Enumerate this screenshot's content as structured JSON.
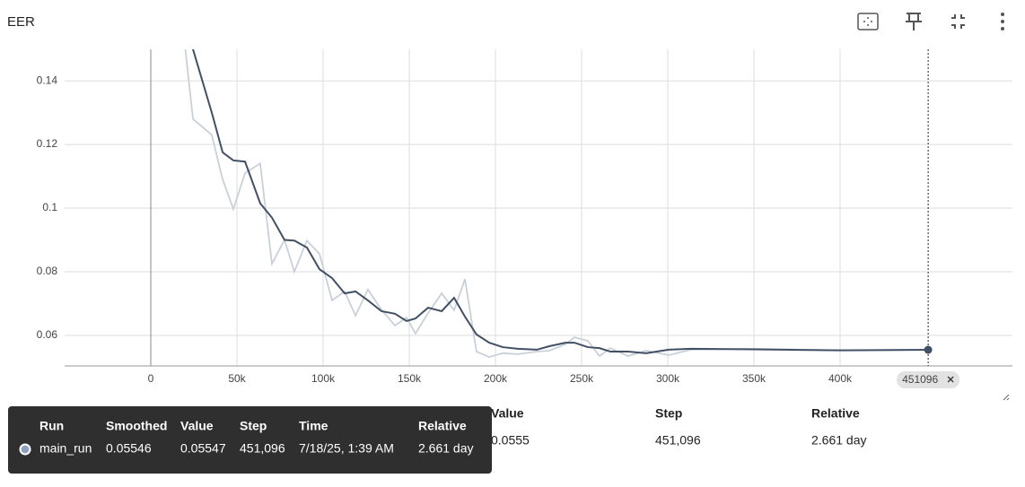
{
  "chart_data": {
    "type": "line",
    "title": "EER",
    "x": [
      18000,
      24500,
      35400,
      41700,
      47900,
      54700,
      63500,
      70300,
      77600,
      83300,
      90600,
      97900,
      105200,
      112500,
      118800,
      126000,
      133900,
      141700,
      148400,
      153600,
      160900,
      168800,
      176000,
      182300,
      189000,
      196400,
      204200,
      213000,
      224000,
      231300,
      240600,
      245800,
      253600,
      260400,
      266700,
      277000,
      287500,
      300500,
      313500,
      350000,
      400000,
      451096
    ],
    "series": [
      {
        "color": "#c9d0da",
        "values": [
          0.16,
          0.128,
          0.123,
          0.109,
          0.0997,
          0.111,
          0.114,
          0.0825,
          0.09,
          0.08,
          0.0898,
          0.0856,
          0.071,
          0.0738,
          0.0662,
          0.0744,
          0.068,
          0.0631,
          0.0656,
          0.0606,
          0.067,
          0.0732,
          0.0679,
          0.0777,
          0.0549,
          0.0532,
          0.0544,
          0.0541,
          0.0549,
          0.0552,
          0.0572,
          0.0594,
          0.0583,
          0.0535,
          0.056,
          0.0535,
          0.0552,
          0.0538,
          0.0555,
          0.0558,
          0.0553,
          0.05547
        ]
      },
      {
        "name": "main_run",
        "color": "#425066",
        "values": [
          0.17,
          0.1499,
          0.13,
          0.1175,
          0.115,
          0.1146,
          0.1015,
          0.097,
          0.09,
          0.0898,
          0.0876,
          0.0808,
          0.078,
          0.0732,
          0.0738,
          0.071,
          0.0676,
          0.0668,
          0.0645,
          0.0653,
          0.0687,
          0.0676,
          0.0718,
          0.0659,
          0.0603,
          0.0577,
          0.0563,
          0.0558,
          0.0555,
          0.0566,
          0.0577,
          0.0577,
          0.0563,
          0.056,
          0.0549,
          0.0549,
          0.0544,
          0.0555,
          0.0558,
          0.0556,
          0.0553,
          0.05546
        ]
      }
    ],
    "xlim": [
      -50000,
      500000
    ],
    "ylim": [
      0.0504,
      0.1499
    ],
    "xticks": [
      {
        "value": 0,
        "label": "0"
      },
      {
        "value": 50000,
        "label": "50k"
      },
      {
        "value": 100000,
        "label": "100k"
      },
      {
        "value": 150000,
        "label": "150k"
      },
      {
        "value": 200000,
        "label": "200k"
      },
      {
        "value": 250000,
        "label": "250k"
      },
      {
        "value": 300000,
        "label": "300k"
      },
      {
        "value": 350000,
        "label": "350k"
      },
      {
        "value": 400000,
        "label": "400k"
      }
    ],
    "yticks": [
      0.06,
      0.08,
      0.1,
      0.12,
      0.14
    ],
    "grid": true,
    "hover_step": 451096
  },
  "table": {
    "headers": [
      "Run ↑",
      "Smoothed",
      "Value",
      "Step",
      "Relative"
    ],
    "row": [
      "main_run",
      "0.0555",
      "0.0555",
      "451,096",
      "2.661 day"
    ]
  },
  "tooltip": {
    "headers": [
      "Run",
      "Smoothed",
      "Value",
      "Step",
      "Time",
      "Relative"
    ],
    "row": [
      "main_run",
      "0.05546",
      "0.05547",
      "451,096",
      "7/18/25, 1:39 AM",
      "2.661 day"
    ]
  }
}
